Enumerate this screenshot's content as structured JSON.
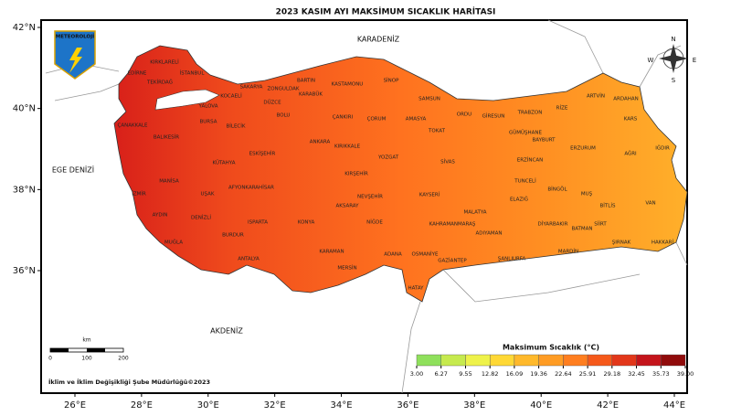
{
  "title": "2023 KASIM AYI MAKSİMUM SICAKLIK HARİTASI",
  "seas": [
    "KARADENİZ",
    "EGE DENİZİ",
    "AKDENİZ"
  ],
  "logo": "METEOROLOJİ",
  "compass": [
    "N",
    "W",
    "E",
    "S"
  ],
  "latitude_ticks": [
    {
      "value": 42,
      "label": "42°N"
    },
    {
      "value": 40,
      "label": "40°N"
    },
    {
      "value": 38,
      "label": "38°N"
    },
    {
      "value": 36,
      "label": "36°N"
    }
  ],
  "longitude_ticks": [
    {
      "value": 26,
      "label": "26°E"
    },
    {
      "value": 28,
      "label": "28°E"
    },
    {
      "value": 30,
      "label": "30°E"
    },
    {
      "value": 32,
      "label": "32°E"
    },
    {
      "value": 34,
      "label": "34°E"
    },
    {
      "value": 36,
      "label": "36°E"
    },
    {
      "value": 38,
      "label": "38°E"
    },
    {
      "value": 40,
      "label": "40°E"
    },
    {
      "value": 42,
      "label": "42°E"
    },
    {
      "value": 44,
      "label": "44°E"
    }
  ],
  "scale_bar": {
    "unit": "km",
    "labels": [
      "0",
      "100",
      "200"
    ]
  },
  "credit": "İklim ve İklim Değişikliği Şube Müdürlüğü©2023",
  "colorbar": {
    "title": "Maksimum Sıcaklık (°C)",
    "ticks": [
      {
        "value": 3,
        "label": "3.00"
      },
      {
        "value": 6.27,
        "label": "6.27"
      },
      {
        "value": 9.55,
        "label": "9.55"
      },
      {
        "value": 12.82,
        "label": "12.82"
      },
      {
        "value": 16.09,
        "label": "16.09"
      },
      {
        "value": 19.36,
        "label": "19.36"
      },
      {
        "value": 22.64,
        "label": "22.64"
      },
      {
        "value": 25.91,
        "label": "25.91"
      },
      {
        "value": 29.18,
        "label": "29.18"
      },
      {
        "value": 32.45,
        "label": "32.45"
      },
      {
        "value": 35.73,
        "label": "35.73"
      },
      {
        "value": 39,
        "label": "39.00"
      }
    ],
    "colors": [
      "#8fe05c",
      "#c6ea4e",
      "#eef24a",
      "#ffd835",
      "#ffb92b",
      "#ff9c24",
      "#ff7e1f",
      "#f5591a",
      "#e2371a",
      "#c4141b",
      "#900b0b"
    ]
  },
  "provinces": [
    "KIRKLARELİ",
    "EDİRNE",
    "TEKİRDAĞ",
    "İSTANBUL",
    "KOCAELİ",
    "SAKARYA",
    "ZONGULDAK",
    "BARTIN",
    "KARABÜK",
    "KASTAMONU",
    "SİNOP",
    "SAMSUN",
    "ORDU",
    "GİRESUN",
    "TRABZON",
    "RİZE",
    "ARTVİN",
    "ARDAHAN",
    "KARS",
    "ÇANAKKALE",
    "BALIKESİR",
    "BURSA",
    "YALOVA",
    "BİLECİK",
    "DÜZCE",
    "BOLU",
    "ÇANKIRI",
    "ÇORUM",
    "AMASYA",
    "TOKAT",
    "GÜMÜŞHANE",
    "BAYBURT",
    "ERZURUM",
    "IĞDIR",
    "AĞRI",
    "ESKİŞEHİR",
    "ANKARA",
    "KIRIKKALE",
    "YOZGAT",
    "SİVAS",
    "ERZİNCAN",
    "KÜTAHYA",
    "İZMİR",
    "MANİSA",
    "UŞAK",
    "AFYONKARAHİSAR",
    "KIRŞEHİR",
    "NEVŞEHİR",
    "KAYSERİ",
    "TUNCELİ",
    "BİNGÖL",
    "MUŞ",
    "VAN",
    "BİTLİS",
    "ELAZIĞ",
    "MALATYA",
    "AYDIN",
    "DENİZLİ",
    "ISPARTA",
    "KONYA",
    "AKSARAY",
    "NİĞDE",
    "KAHRAMANMARAŞ",
    "ADIYAMAN",
    "DİYARBAKIR",
    "BATMAN",
    "SİİRT",
    "ŞIRNAK",
    "HAKKARİ",
    "MUĞLA",
    "BURDUR",
    "ANTALYA",
    "KARAMAN",
    "ADANA",
    "OSMANİYE",
    "GAZİANTEP",
    "ŞANLIURFA",
    "MARDİN",
    "MERSİN",
    "HATAY"
  ]
}
